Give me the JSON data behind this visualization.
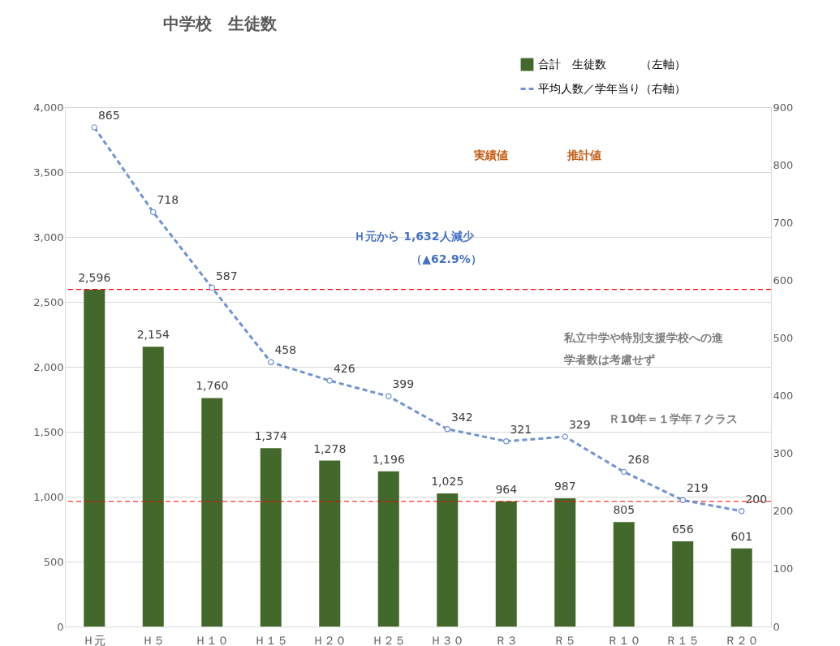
{
  "chart_data": {
    "type": "bar",
    "title": "中学校　生徒数",
    "categories": [
      "Ｈ元",
      "Ｈ５",
      "Ｈ１０",
      "Ｈ１５",
      "Ｈ２０",
      "Ｈ２５",
      "Ｈ３０",
      "Ｒ３",
      "Ｒ５",
      "Ｒ１０",
      "Ｒ１５",
      "Ｒ２０"
    ],
    "series": [
      {
        "name": "合計　生徒数　　　（左軸）",
        "color": "#43682b",
        "type": "bar",
        "values": [
          2596,
          2154,
          1760,
          1374,
          1278,
          1196,
          1025,
          964,
          987,
          805,
          656,
          601
        ],
        "value_labels": [
          "2,596",
          "2,154",
          "1,760",
          "1,374",
          "1,278",
          "1,196",
          "1,025",
          "964",
          "987",
          "805",
          "656",
          "601"
        ]
      },
      {
        "name": "平均人数／学年当り（右軸）",
        "color": "#6f93d4",
        "type": "line",
        "axis": "y2",
        "marker": "circle",
        "line_style": "dashed",
        "values": [
          865,
          718,
          587,
          458,
          426,
          399,
          342,
          321,
          329,
          268,
          219,
          200
        ]
      }
    ],
    "ylim": [
      0,
      4000
    ],
    "yticks": [
      0,
      {
        "value": 500,
        "label": "500"
      },
      {
        "value": 1000,
        "label": "1,000"
      },
      {
        "value": 1500,
        "label": "1,500"
      },
      {
        "value": 2000,
        "label": "2,000"
      },
      {
        "value": 2500,
        "label": "2,500"
      },
      {
        "value": 3000,
        "label": "3,000"
      },
      {
        "value": 3500,
        "label": "3,500"
      },
      {
        "value": 4000,
        "label": "4,000"
      }
    ],
    "y2lim": [
      0,
      900
    ],
    "y2ticks": [
      0,
      100,
      200,
      300,
      400,
      500,
      600,
      700,
      800,
      900
    ],
    "ref_lines": [
      {
        "axis": "y",
        "value": 2596,
        "label": null,
        "color": "#ff0000",
        "line_style": "dashed"
      },
      {
        "axis": "y",
        "value": 964,
        "label": null,
        "color": "#ff0000",
        "line_style": "dashed"
      }
    ],
    "annotations": [
      "実績値",
      "推計値",
      "Ｈ元から 1,632人減少",
      "（▲62.9%）",
      "私立中学や特別支援学校への進",
      "学者数は考慮せず",
      "Ｒ10年＝１学年７クラス"
    ],
    "data_labels": true,
    "grid": "y",
    "legend": "top right"
  }
}
